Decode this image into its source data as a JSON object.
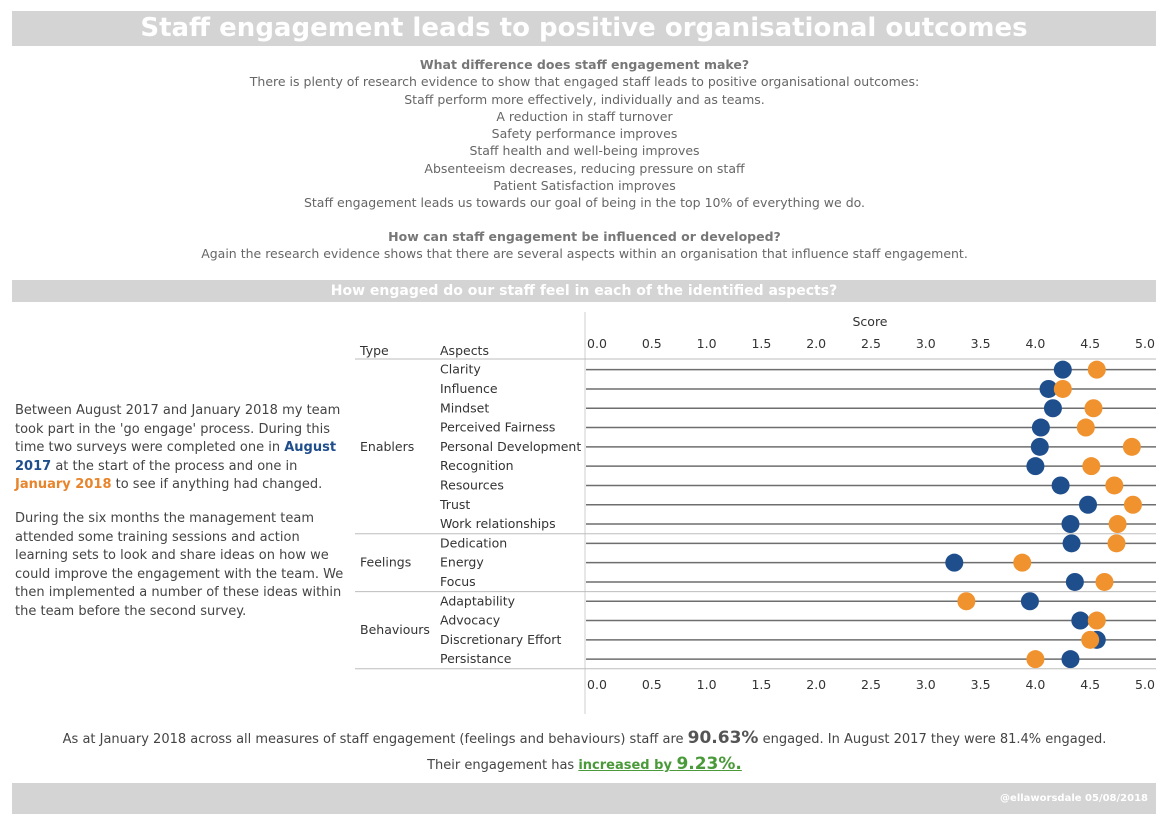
{
  "header": {
    "title": "Staff engagement leads to positive organisational outcomes",
    "section_title": "How engaged do our staff feel in each of the identified aspects?",
    "credit": "@ellaworsdale 05/08/2018"
  },
  "intro": {
    "q1": "What difference does staff engagement make?",
    "lines": [
      "There is plenty of research evidence to show that engaged staff leads to positive organisational outcomes:",
      "Staff perform more effectively, individually and as teams.",
      "A reduction in staff turnover",
      "Safety performance improves",
      "Staff health and well-being improves",
      "Absenteeism decreases, reducing pressure on staff",
      "Patient Satisfaction improves",
      "Staff engagement leads us towards our goal of being in the top 10% of everything we do."
    ],
    "q2": "How can staff engagement be influenced or developed?",
    "q2_text": "Again the research evidence shows that there are several aspects within an organisation that influence staff engagement."
  },
  "left": {
    "p1_a": "Between August 2017 and January 2018 my team took part in the 'go engage' process. During this time two surveys were completed one in ",
    "p1_aug": "August 2017",
    "p1_b": " at the start of the process and one in ",
    "p1_jan": "January 2018",
    "p1_c": " to see if anything had changed.",
    "p2": "During the six months the management team attended some training sessions and action learning sets to look and share ideas on how we could improve the engagement with the team. We then implemented a number of these ideas within the team before the second survey."
  },
  "summary": {
    "a": "As at January 2018 across all measures of staff engagement (feelings and behaviours) staff are ",
    "pct": "90.63%",
    "b": " engaged. In August 2017 they were 81.4% engaged.",
    "c": "Their engagement has ",
    "inc_label": "increased by ",
    "inc_pct": "9.23%."
  },
  "colors": {
    "aug": "#1f4e8c",
    "jan": "#f0922e",
    "line": "#6e6e6e"
  },
  "chart_data": {
    "type": "dot",
    "xlabel": "Score",
    "col_type": "Type",
    "col_aspects": "Aspects",
    "xlim": [
      0,
      5.0
    ],
    "ticks": [
      "0.0",
      "0.5",
      "1.0",
      "1.5",
      "2.0",
      "2.5",
      "3.0",
      "3.5",
      "4.0",
      "4.5",
      "5.0"
    ],
    "series": [
      {
        "name": "August 2017",
        "color": "#1f4e8c"
      },
      {
        "name": "January 2018",
        "color": "#f0922e"
      }
    ],
    "groups": [
      {
        "type": "Enablers",
        "rows": [
          {
            "aspect": "Clarity",
            "aug": 4.25,
            "jan": 4.56
          },
          {
            "aspect": "Influence",
            "aug": 4.12,
            "jan": 4.25
          },
          {
            "aspect": "Mindset",
            "aug": 4.16,
            "jan": 4.53
          },
          {
            "aspect": "Perceived Fairness",
            "aug": 4.05,
            "jan": 4.46
          },
          {
            "aspect": "Personal Development",
            "aug": 4.04,
            "jan": 4.88
          },
          {
            "aspect": "Recognition",
            "aug": 4.0,
            "jan": 4.51
          },
          {
            "aspect": "Resources",
            "aug": 4.23,
            "jan": 4.72
          },
          {
            "aspect": "Trust",
            "aug": 4.48,
            "jan": 4.89
          },
          {
            "aspect": "Work relationships",
            "aug": 4.32,
            "jan": 4.75
          }
        ]
      },
      {
        "type": "Feelings",
        "rows": [
          {
            "aspect": "Dedication",
            "aug": 4.33,
            "jan": 4.74
          },
          {
            "aspect": "Energy",
            "aug": 3.26,
            "jan": 3.88
          },
          {
            "aspect": "Focus",
            "aug": 4.36,
            "jan": 4.63
          }
        ]
      },
      {
        "type": "Behaviours",
        "rows": [
          {
            "aspect": "Adaptability",
            "aug": 3.95,
            "jan": 3.37
          },
          {
            "aspect": "Advocacy",
            "aug": 4.41,
            "jan": 4.56
          },
          {
            "aspect": "Discretionary Effort",
            "aug": 4.56,
            "jan": 4.5
          },
          {
            "aspect": "Persistance",
            "aug": 4.32,
            "jan": 4.0
          }
        ]
      }
    ]
  }
}
